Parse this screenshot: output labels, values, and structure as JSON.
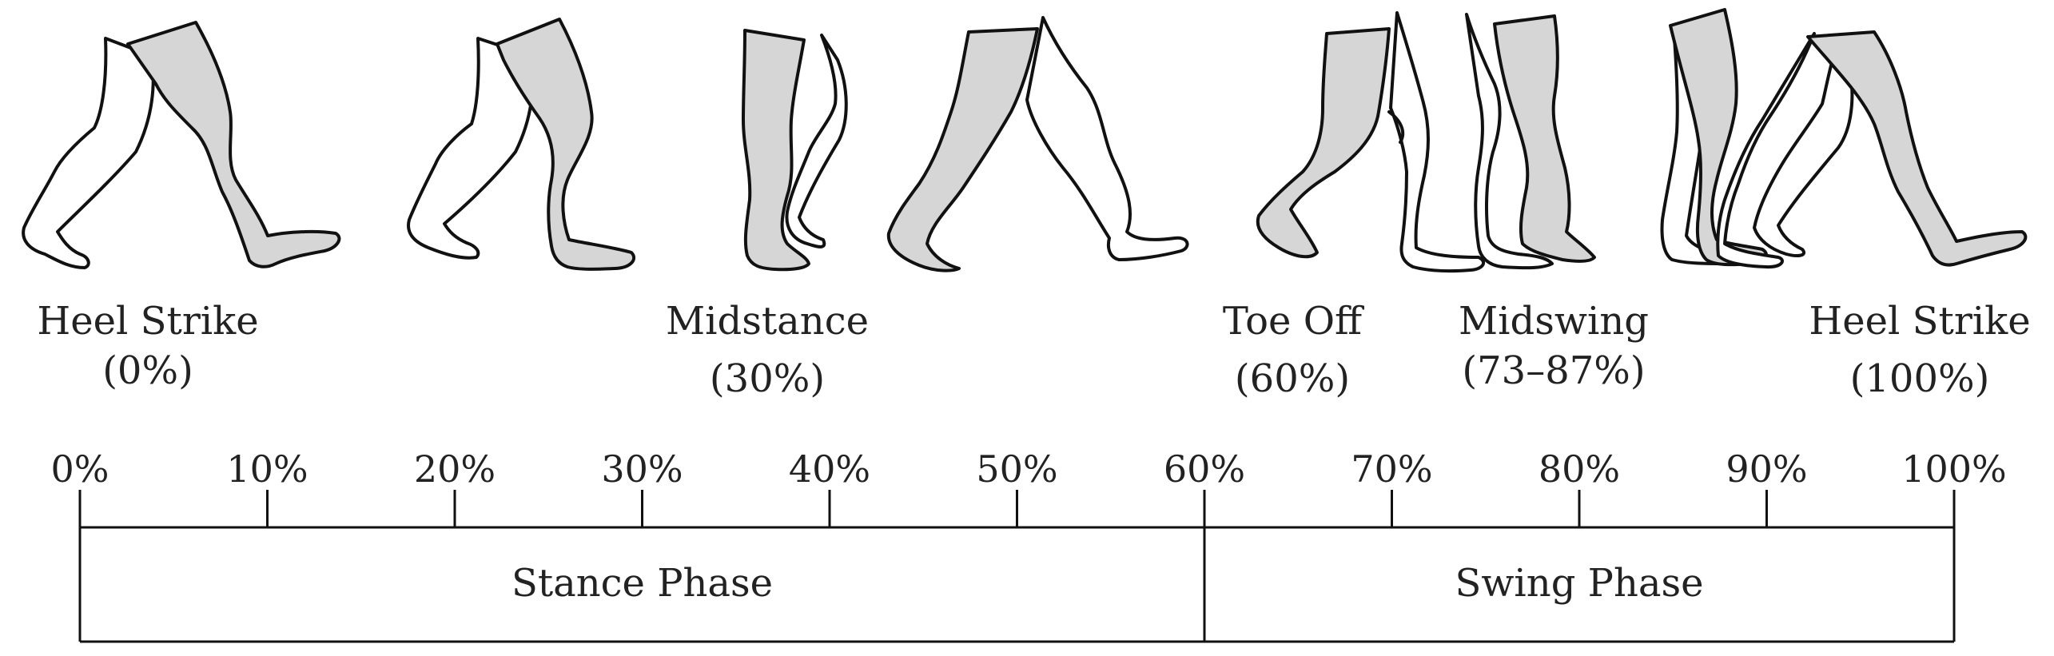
{
  "colors": {
    "ink": "#111111",
    "shade": "#d6d6d6",
    "background": "#ffffff"
  },
  "phase_labels": [
    {
      "name": "Heel Strike",
      "pct": "(0%)"
    },
    {
      "name": "Midstance",
      "pct": "(30%)"
    },
    {
      "name": "Toe Off",
      "pct": "(60%)"
    },
    {
      "name": "Midswing",
      "pct": "(73–87%)"
    },
    {
      "name": "Heel Strike",
      "pct": "(100%)"
    }
  ],
  "timeline": {
    "ticks": [
      "0%",
      "10%",
      "20%",
      "30%",
      "40%",
      "50%",
      "60%",
      "70%",
      "80%",
      "90%",
      "100%"
    ],
    "tick_values": [
      0,
      10,
      20,
      30,
      40,
      50,
      60,
      70,
      80,
      90,
      100
    ],
    "phases": [
      {
        "label": "Stance Phase",
        "start": 0,
        "end": 60
      },
      {
        "label": "Swing Phase",
        "start": 60,
        "end": 100
      }
    ]
  },
  "figures": [
    {
      "name": "heel-strike-0",
      "gait_pct": 0
    },
    {
      "name": "loading",
      "gait_pct": 10
    },
    {
      "name": "midstance",
      "gait_pct": 30
    },
    {
      "name": "terminal-stance",
      "gait_pct": 45
    },
    {
      "name": "toe-off",
      "gait_pct": 60
    },
    {
      "name": "midswing",
      "gait_pct": 80
    },
    {
      "name": "terminal-swing",
      "gait_pct": 90
    },
    {
      "name": "heel-strike-100",
      "gait_pct": 100
    }
  ]
}
